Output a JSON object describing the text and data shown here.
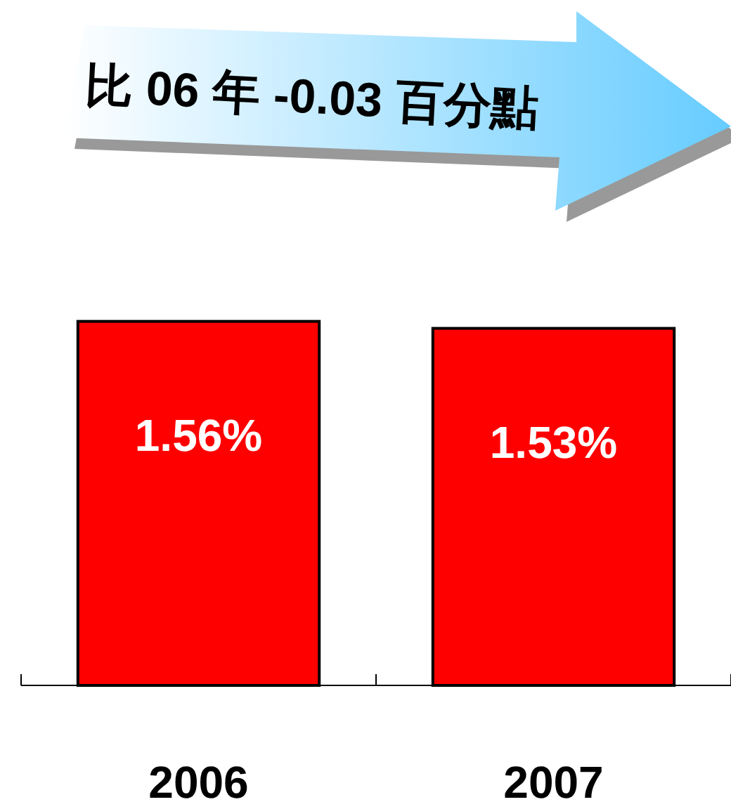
{
  "chart_data": {
    "type": "bar",
    "title": "比 06 年 -0.03 百分點",
    "categories": [
      "2006",
      "2007"
    ],
    "values": [
      1.56,
      1.53
    ],
    "value_labels": [
      "1.56%",
      "1.53%"
    ],
    "color": "#ff0000"
  }
}
